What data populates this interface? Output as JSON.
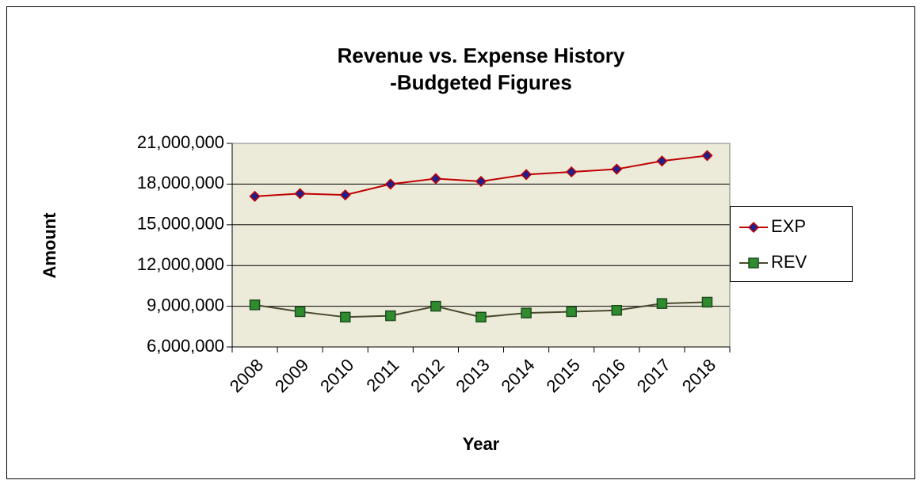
{
  "chart_data": {
    "type": "line",
    "title": "Revenue vs. Expense History",
    "subtitle": "-Budgeted Figures",
    "x_label": "Year",
    "y_label": "Amount",
    "categories": [
      "2008",
      "2009",
      "2010",
      "2011",
      "2012",
      "2013",
      "2014",
      "2015",
      "2016",
      "2017",
      "2018"
    ],
    "series": [
      {
        "name": "EXP",
        "color": "#c00000",
        "marker": "diamond",
        "marker_color": "#1f1f8f",
        "values": [
          17100000,
          17300000,
          17200000,
          18000000,
          18400000,
          18200000,
          18700000,
          18900000,
          19100000,
          19700000,
          20100000
        ]
      },
      {
        "name": "REV",
        "color": "#4a4a30",
        "marker": "square",
        "marker_color": "#2e8b2e",
        "values": [
          9100000,
          8600000,
          8200000,
          8300000,
          9000000,
          8200000,
          8500000,
          8600000,
          8700000,
          9200000,
          9300000
        ]
      }
    ],
    "ylim": [
      6000000,
      21000000
    ],
    "yticks": [
      {
        "value": 6000000,
        "label": "6,000,000"
      },
      {
        "value": 9000000,
        "label": "9,000,000"
      },
      {
        "value": 12000000,
        "label": "12,000,000"
      },
      {
        "value": 15000000,
        "label": "15,000,000"
      },
      {
        "value": 18000000,
        "label": "18,000,000"
      },
      {
        "value": 21000000,
        "label": "21,000,000"
      }
    ],
    "grid": true,
    "legend": "right",
    "plot_background": "#ecead9"
  }
}
